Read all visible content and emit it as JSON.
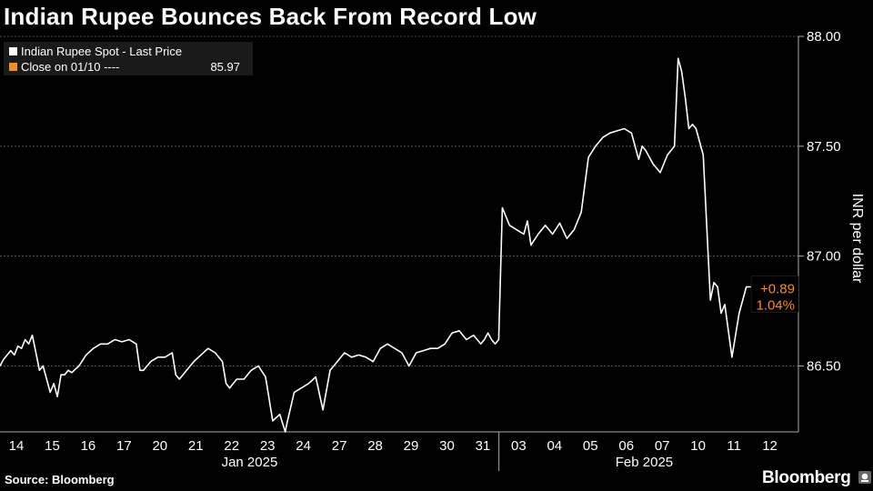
{
  "header": {
    "title": "Indian Rupee Bounces Back From Record Low"
  },
  "legend": {
    "items": [
      {
        "label": "Indian Rupee Spot - Last Price",
        "color": "#ffffff"
      },
      {
        "label": "Close on 01/10 ----",
        "value": "85.97",
        "color": "#f28c28"
      }
    ]
  },
  "annotation": {
    "change": "+0.89",
    "percent": "1.04%",
    "color": "#f28c28"
  },
  "footer": {
    "source": "Source: Bloomberg",
    "brand": "Bloomberg"
  },
  "chart_data": {
    "type": "line",
    "ylabel": "INR per dollar",
    "ylim": [
      86.2,
      88.0
    ],
    "yticks": [
      "86.50",
      "87.00",
      "87.50",
      "88.00"
    ],
    "categories": [
      "14",
      "15",
      "16",
      "17",
      "20",
      "21",
      "22",
      "23",
      "24",
      "27",
      "28",
      "29",
      "30",
      "31",
      "03",
      "04",
      "05",
      "06",
      "07",
      "10",
      "11",
      "12"
    ],
    "month_labels": [
      {
        "label": "Jan 2025",
        "from": 0,
        "to": 13
      },
      {
        "label": "Feb 2025",
        "from": 14,
        "to": 21
      }
    ],
    "grid": true,
    "series": [
      {
        "name": "Indian Rupee Spot - Last Price",
        "x": [
          0,
          0.1,
          0.2,
          0.3,
          0.4,
          0.5,
          0.6,
          0.7,
          0.8,
          0.9,
          1.0,
          1.1,
          1.2,
          1.3,
          1.4,
          1.5,
          1.6,
          1.7,
          1.8,
          1.9,
          2.0,
          2.2,
          2.4,
          2.6,
          2.8,
          3.0,
          3.2,
          3.4,
          3.6,
          3.8,
          3.9,
          4.0,
          4.2,
          4.4,
          4.6,
          4.8,
          4.9,
          5.0,
          5.2,
          5.4,
          5.6,
          5.8,
          6.0,
          6.2,
          6.3,
          6.4,
          6.6,
          6.8,
          7.0,
          7.2,
          7.4,
          7.6,
          7.8,
          7.95,
          8.0,
          8.2,
          8.4,
          8.6,
          8.8,
          9.0,
          9.2,
          9.4,
          9.6,
          9.8,
          10.0,
          10.2,
          10.4,
          10.6,
          10.8,
          11.0,
          11.2,
          11.4,
          11.6,
          11.8,
          12.0,
          12.2,
          12.4,
          12.6,
          12.8,
          13.0,
          13.2,
          13.4,
          13.5,
          13.6,
          13.7,
          13.8,
          13.9,
          14.0,
          14.2,
          14.4,
          14.6,
          14.7,
          14.8,
          15.0,
          15.2,
          15.4,
          15.6,
          15.8,
          16.0,
          16.2,
          16.4,
          16.6,
          16.8,
          17.0,
          17.2,
          17.4,
          17.6,
          17.8,
          17.9,
          18.0,
          18.1,
          18.2,
          18.4,
          18.6,
          18.8,
          18.9,
          19.0,
          19.1,
          19.2,
          19.3,
          19.4,
          19.6,
          19.8,
          19.9,
          20.0,
          20.1,
          20.2,
          20.4,
          20.6,
          20.8,
          21.0
        ],
        "values": [
          86.5,
          86.53,
          86.55,
          86.57,
          86.55,
          86.59,
          86.58,
          86.62,
          86.6,
          86.64,
          86.56,
          86.48,
          86.5,
          86.44,
          86.38,
          86.42,
          86.36,
          86.46,
          86.46,
          86.48,
          86.47,
          86.5,
          86.55,
          86.58,
          86.6,
          86.6,
          86.62,
          86.61,
          86.62,
          86.6,
          86.48,
          86.48,
          86.52,
          86.54,
          86.54,
          86.56,
          86.46,
          86.44,
          86.48,
          86.52,
          86.55,
          86.58,
          86.56,
          86.52,
          86.42,
          86.4,
          86.44,
          86.44,
          86.48,
          86.5,
          86.45,
          86.25,
          86.28,
          86.2,
          86.24,
          86.38,
          86.4,
          86.42,
          86.45,
          86.3,
          86.48,
          86.52,
          86.56,
          86.54,
          86.55,
          86.54,
          86.52,
          86.58,
          86.6,
          86.58,
          86.56,
          86.5,
          86.56,
          86.57,
          86.58,
          86.58,
          86.6,
          86.65,
          86.66,
          86.62,
          86.64,
          86.6,
          86.62,
          86.65,
          86.62,
          86.6,
          86.62,
          87.22,
          87.14,
          87.12,
          87.1,
          87.16,
          87.05,
          87.1,
          87.14,
          87.1,
          87.15,
          87.08,
          87.12,
          87.2,
          87.45,
          87.5,
          87.54,
          87.56,
          87.57,
          87.58,
          87.56,
          87.44,
          87.5,
          87.48,
          87.45,
          87.42,
          87.38,
          87.46,
          87.5,
          87.9,
          87.84,
          87.72,
          87.58,
          87.6,
          87.58,
          87.46,
          86.8,
          86.88,
          86.86,
          86.74,
          86.78,
          86.54,
          86.74,
          86.86,
          86.86
        ]
      }
    ],
    "reference_line": {
      "label": "Close on 01/10",
      "value": 85.97
    }
  }
}
